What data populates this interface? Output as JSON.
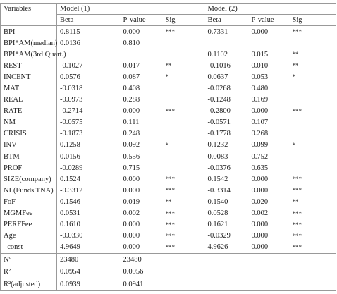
{
  "table": {
    "header": {
      "variables": "Variables",
      "model1": "Model (1)",
      "model2": "Model (2)",
      "columns": [
        "Beta",
        "P-value",
        "Sig",
        "Beta",
        "P-value",
        "Sig"
      ]
    },
    "rows": [
      [
        "BPI",
        "0.8115",
        "0.000",
        "***",
        "0.7331",
        "0.000",
        "***"
      ],
      [
        "BPI*AM(median)",
        "0.0136",
        "0.810",
        null,
        null,
        null,
        null
      ],
      [
        "BPI*AM(3rd Quart.)",
        null,
        null,
        null,
        "0.1102",
        "0.015",
        "**"
      ],
      [
        "REST",
        "-0.1027",
        "0.017",
        "**",
        "-0.1016",
        "0.010",
        "**"
      ],
      [
        "INCENT",
        "0.0576",
        "0.087",
        "*",
        "0.0637",
        "0.053",
        "*"
      ],
      [
        "MAT",
        "-0.0318",
        "0.408",
        null,
        "-0.0268",
        "0.480",
        null
      ],
      [
        "REAL",
        "-0.0973",
        "0.288",
        null,
        "-0.1248",
        "0.169",
        null
      ],
      [
        "RATE",
        "-0.2714",
        "0.000",
        "***",
        "-0.2800",
        "0.000",
        "***"
      ],
      [
        "NM",
        "-0.0575",
        "0.111",
        null,
        "-0.0571",
        "0.107",
        null
      ],
      [
        "CRISIS",
        "-0.1873",
        "0.248",
        null,
        "-0.1778",
        "0.268",
        null
      ],
      [
        "INV",
        "0.1258",
        "0.092",
        "*",
        "0.1232",
        "0.099",
        "*"
      ],
      [
        "BTM",
        "0.0156",
        "0.556",
        null,
        "0.0083",
        "0.752",
        null
      ],
      [
        "PROF",
        "-0.0289",
        "0.715",
        null,
        "-0.0376",
        "0.635",
        null
      ],
      [
        "SIZE(company)",
        "0.1524",
        "0.000",
        "***",
        "0.1542",
        "0.000",
        "***"
      ],
      [
        "NL(Funds TNA)",
        "-0.3312",
        "0.000",
        "***",
        "-0.3314",
        "0.000",
        "***"
      ],
      [
        "FoF",
        "0.1546",
        "0.019",
        "**",
        "0.1540",
        "0.020",
        "**"
      ],
      [
        "MGMFee",
        "0.0531",
        "0.002",
        "***",
        "0.0528",
        "0.002",
        "***"
      ],
      [
        "PERFFee",
        "0.1610",
        "0.000",
        "***",
        "0.1621",
        "0.000",
        "***"
      ],
      [
        "Age",
        "-0.0330",
        "0.000",
        "***",
        "-0.0329",
        "0.000",
        "***"
      ],
      [
        "_const",
        "4.9649",
        "0.000",
        "***",
        "4.9626",
        "0.000",
        "***"
      ]
    ],
    "footer": [
      [
        "Nº",
        "23480",
        "23480"
      ],
      [
        "R²",
        "0.0954",
        "0.0956"
      ],
      [
        "R²(adjusted)",
        "0.0939",
        "0.0941"
      ]
    ]
  }
}
